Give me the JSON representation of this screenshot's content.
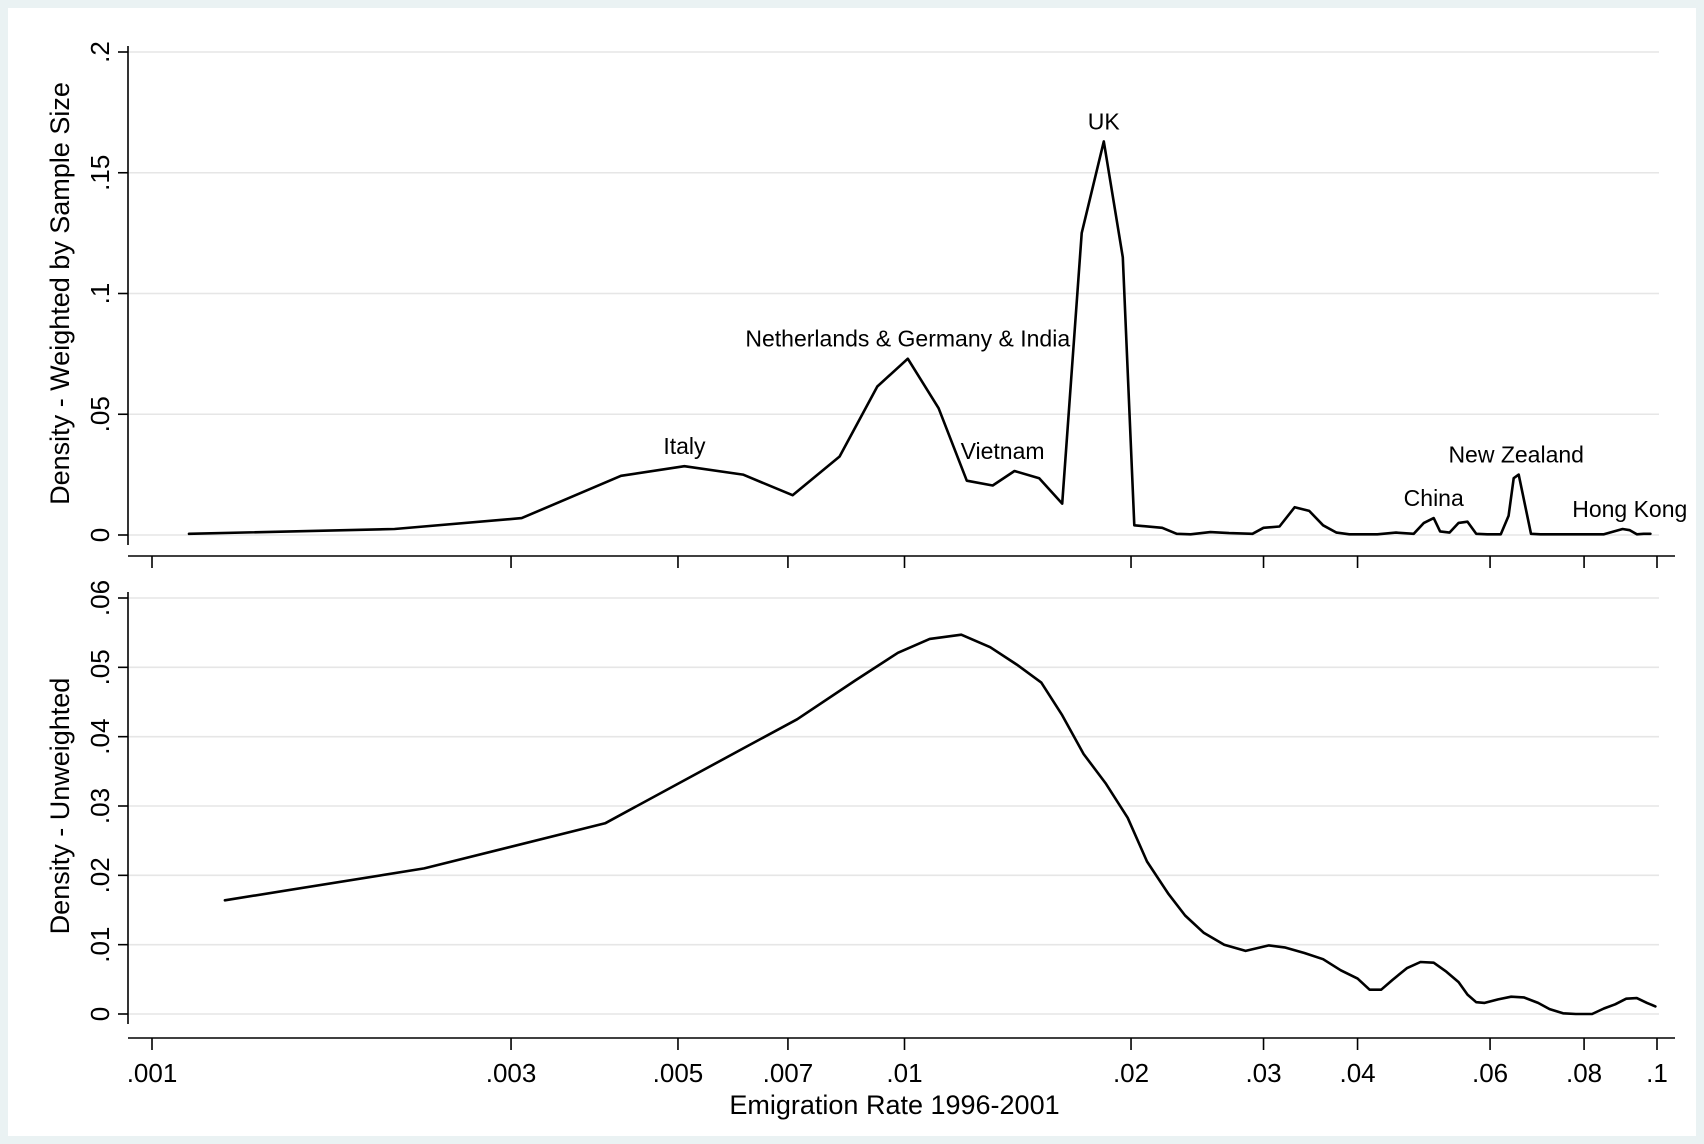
{
  "chart_data": [
    {
      "type": "line",
      "title": "",
      "xlabel": "",
      "ylabel": "Density - Weighted by Sample Size",
      "x_scale": "log",
      "xlim": [
        0.001,
        0.1
      ],
      "ylim": [
        0,
        0.2
      ],
      "yticks": [
        0,
        0.05,
        0.1,
        0.15,
        0.2
      ],
      "ytick_labels": [
        "0",
        ".05",
        ".1",
        ".15",
        ".2"
      ],
      "grid": true,
      "x": [
        0.00112,
        0.0021,
        0.0031,
        0.0042,
        0.0051,
        0.0061,
        0.0071,
        0.0082,
        0.0092,
        0.0101,
        0.0111,
        0.0121,
        0.0131,
        0.014,
        0.0151,
        0.0162,
        0.0172,
        0.0184,
        0.0195,
        0.0202,
        0.022,
        0.023,
        0.024,
        0.0255,
        0.027,
        0.029,
        0.03,
        0.0315,
        0.033,
        0.0345,
        0.036,
        0.0375,
        0.039,
        0.0405,
        0.0425,
        0.045,
        0.0475,
        0.049,
        0.0505,
        0.0515,
        0.053,
        0.0545,
        0.056,
        0.0575,
        0.0595,
        0.062,
        0.0635,
        0.0645,
        0.0655,
        0.068,
        0.07,
        0.075,
        0.08,
        0.085,
        0.09,
        0.092,
        0.094,
        0.096,
        0.098
      ],
      "values": [
        0.0005,
        0.0025,
        0.007,
        0.0245,
        0.0285,
        0.025,
        0.0165,
        0.0325,
        0.0615,
        0.073,
        0.0525,
        0.0225,
        0.0205,
        0.0265,
        0.0235,
        0.013,
        0.125,
        0.163,
        0.115,
        0.004,
        0.003,
        0.0005,
        0.0003,
        0.0012,
        0.0008,
        0.0005,
        0.003,
        0.0035,
        0.0115,
        0.01,
        0.004,
        0.001,
        0.0003,
        0.0003,
        0.0003,
        0.001,
        0.0005,
        0.005,
        0.007,
        0.0015,
        0.001,
        0.005,
        0.0055,
        0.0005,
        0.0003,
        0.0003,
        0.008,
        0.0235,
        0.025,
        0.0005,
        0.0003,
        0.0003,
        0.0003,
        0.0003,
        0.0025,
        0.002,
        0.0003,
        0.0005,
        0.0005
      ],
      "annotations": [
        {
          "text": "UK",
          "x": 0.0184,
          "y": 0.163
        },
        {
          "text": "Netherlands & Germany & India",
          "x": 0.0101,
          "y": 0.073
        },
        {
          "text": "Italy",
          "x": 0.0051,
          "y": 0.0285
        },
        {
          "text": "Vietnam",
          "x": 0.0135,
          "y": 0.0265
        },
        {
          "text": "China",
          "x": 0.0505,
          "y": 0.007
        },
        {
          "text": "New Zealand",
          "x": 0.065,
          "y": 0.025
        },
        {
          "text": "Hong Kong",
          "x": 0.092,
          "y": 0.0025
        }
      ]
    },
    {
      "type": "line",
      "title": "",
      "xlabel": "Emigration Rate 1996-2001",
      "ylabel": "Density - Unweighted",
      "x_scale": "log",
      "xlim": [
        0.001,
        0.1
      ],
      "ylim": [
        0,
        0.06
      ],
      "xticks": [
        0.001,
        0.003,
        0.005,
        0.007,
        0.01,
        0.02,
        0.03,
        0.04,
        0.06,
        0.08,
        0.1
      ],
      "xtick_labels": [
        ".001",
        ".003",
        ".005",
        ".007",
        ".01",
        ".02",
        ".03",
        ".04",
        ".06",
        ".08",
        ".1"
      ],
      "yticks": [
        0,
        0.01,
        0.02,
        0.03,
        0.04,
        0.05,
        0.06
      ],
      "ytick_labels": [
        "0",
        ".01",
        ".02",
        ".03",
        ".04",
        ".05",
        ".06"
      ],
      "grid": true,
      "x": [
        0.00125,
        0.0023,
        0.004,
        0.0061,
        0.0072,
        0.0086,
        0.0098,
        0.0108,
        0.0119,
        0.013,
        0.0141,
        0.0152,
        0.0162,
        0.0173,
        0.0185,
        0.0198,
        0.021,
        0.0224,
        0.0236,
        0.025,
        0.0266,
        0.0284,
        0.0305,
        0.032,
        0.034,
        0.036,
        0.038,
        0.04,
        0.0415,
        0.043,
        0.0445,
        0.0465,
        0.0485,
        0.0505,
        0.0525,
        0.0545,
        0.056,
        0.0575,
        0.059,
        0.0615,
        0.064,
        0.0665,
        0.0695,
        0.072,
        0.075,
        0.078,
        0.082,
        0.085,
        0.088,
        0.091,
        0.094,
        0.097,
        0.0995
      ],
      "values": [
        0.0164,
        0.021,
        0.0275,
        0.0383,
        0.0425,
        0.0481,
        0.0521,
        0.0541,
        0.0547,
        0.0529,
        0.0504,
        0.0478,
        0.0431,
        0.0375,
        0.0333,
        0.0283,
        0.022,
        0.0174,
        0.0142,
        0.0117,
        0.01,
        0.0091,
        0.0099,
        0.0096,
        0.0088,
        0.0079,
        0.0063,
        0.0051,
        0.0035,
        0.0035,
        0.0049,
        0.0066,
        0.0075,
        0.0074,
        0.0061,
        0.0046,
        0.0028,
        0.0017,
        0.0016,
        0.0021,
        0.0025,
        0.0024,
        0.0016,
        0.0007,
        0.0001,
        0.0,
        0.0,
        0.0008,
        0.0014,
        0.0022,
        0.0023,
        0.0016,
        0.0011
      ]
    }
  ]
}
